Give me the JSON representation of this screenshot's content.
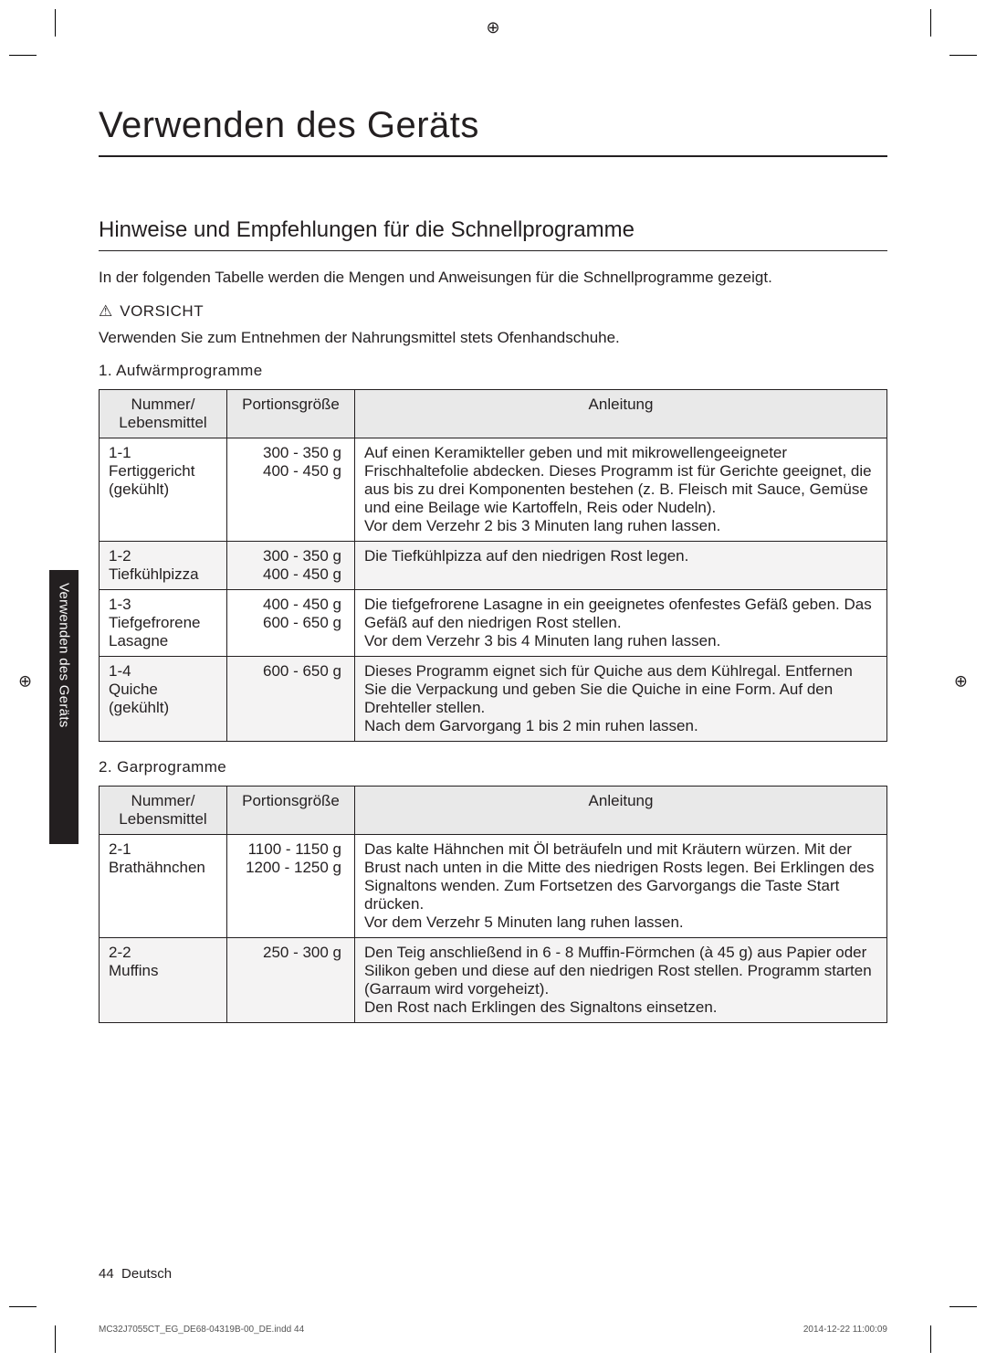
{
  "registration_marks": {
    "glyph": "⊕"
  },
  "page_title": "Verwenden des Geräts",
  "section_title": "Hinweise und Empfehlungen für die Schnellprogramme",
  "intro": "In der folgenden Tabelle werden die Mengen und Anweisungen für die Schnellprogramme gezeigt.",
  "warning": {
    "icon": "⚠",
    "label": "VORSICHT",
    "text": "Verwenden Sie zum Entnehmen der Nahrungsmittel stets Ofenhandschuhe."
  },
  "table1": {
    "heading": "1. Aufwärmprogramme",
    "cols": {
      "num": "Nummer/\nLebensmittel",
      "portion": "Portionsgröße",
      "instr": "Anleitung"
    },
    "rows": [
      {
        "shade": false,
        "num": "1-1\nFertiggericht\n(gekühlt)",
        "portion": "300 - 350 g\n400 - 450 g",
        "instr": "Auf einen Keramikteller geben und mit mikrowellengeeigneter Frischhaltefolie abdecken. Dieses Programm ist für Gerichte geeignet, die aus bis zu drei Komponenten bestehen (z. B. Fleisch mit Sauce, Gemüse und eine Beilage wie Kartoffeln, Reis oder Nudeln).\nVor dem Verzehr 2 bis 3 Minuten lang ruhen lassen."
      },
      {
        "shade": true,
        "num": "1-2\nTiefkühlpizza",
        "portion": "300 - 350 g\n400 - 450 g",
        "instr": "Die Tiefkühlpizza auf den niedrigen Rost legen."
      },
      {
        "shade": false,
        "num": "1-3\nTiefgefrorene\nLasagne",
        "portion": "400 - 450 g\n600 - 650 g",
        "instr": "Die tiefgefrorene Lasagne in ein geeignetes ofenfestes Gefäß geben. Das Gefäß auf den niedrigen Rost stellen.\nVor dem Verzehr 3 bis 4 Minuten lang ruhen lassen."
      },
      {
        "shade": true,
        "num": "1-4\nQuiche\n(gekühlt)",
        "portion": "600 - 650 g",
        "instr": "Dieses Programm eignet sich für Quiche aus dem Kühlregal. Entfernen Sie die Verpackung und geben Sie die Quiche in eine Form. Auf den Drehteller stellen.\nNach dem Garvorgang 1 bis 2 min ruhen lassen."
      }
    ]
  },
  "table2": {
    "heading": "2. Garprogramme",
    "cols": {
      "num": "Nummer/\nLebensmittel",
      "portion": "Portionsgröße",
      "instr": "Anleitung"
    },
    "rows": [
      {
        "shade": false,
        "num": "2-1\nBrathähnchen",
        "portion": "1100 - 1150 g\n1200 - 1250 g",
        "instr": "Das kalte Hähnchen mit Öl beträufeln und mit Kräutern würzen. Mit der Brust nach unten in die Mitte des niedrigen Rosts legen. Bei Erklingen des Signaltons wenden. Zum Fortsetzen des Garvorgangs die Taste Start drücken.\nVor dem Verzehr 5 Minuten lang ruhen lassen."
      },
      {
        "shade": true,
        "num": "2-2\nMuffins",
        "portion": "250 - 300 g",
        "instr": "Den Teig anschließend in 6 - 8 Muffin-Förmchen (à 45 g) aus Papier oder Silikon geben und diese auf den niedrigen Rost stellen. Programm starten (Garraum wird vorgeheizt).\nDen Rost nach Erklingen des Signaltons einsetzen."
      }
    ]
  },
  "side_tab": "Verwenden des Geräts",
  "footer": {
    "pageno": "44",
    "lang": "Deutsch"
  },
  "imprint_left": "MC32J7055CT_EG_DE68-04319B-00_DE.indd   44",
  "imprint_right": "2014-12-22   11:00:09"
}
